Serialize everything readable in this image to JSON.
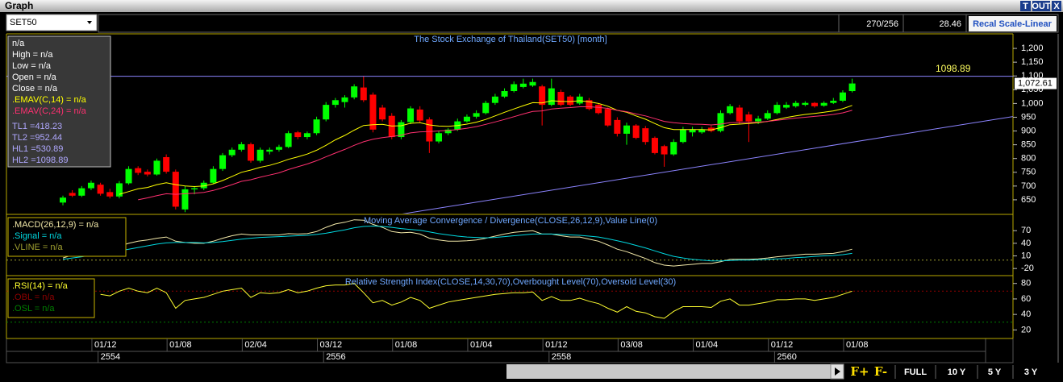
{
  "window": {
    "title": "Graph",
    "buttons": [
      "T",
      "OUT",
      "X"
    ]
  },
  "toolbar": {
    "symbol": "SET50",
    "counter": "270/256",
    "value": "28.46",
    "scale_button": "Recal Scale-Linear"
  },
  "footer": {
    "zoom_buttons": [
      "F+",
      "F-"
    ],
    "range_buttons": [
      "FULL",
      "10 Y",
      "5 Y",
      "3 Y"
    ]
  },
  "chart_data": [
    {
      "type": "candlestick",
      "title": "The Stock Exchange of Thailand(SET50) [month]",
      "categories": [
        null,
        null,
        null,
        "01/12",
        null,
        null,
        null,
        null,
        null,
        null,
        null,
        "01/08",
        null,
        null,
        null,
        null,
        null,
        null,
        null,
        "02/04",
        null,
        null,
        null,
        null,
        null,
        null,
        null,
        "03/12",
        null,
        null,
        null,
        null,
        null,
        null,
        null,
        "01/08",
        null,
        null,
        null,
        null,
        null,
        null,
        null,
        "01/04",
        null,
        null,
        null,
        null,
        null,
        null,
        null,
        "01/12",
        null,
        null,
        null,
        null,
        null,
        null,
        null,
        "03/08",
        null,
        null,
        null,
        null,
        null,
        null,
        null,
        "01/04",
        null,
        null,
        null,
        null,
        null,
        null,
        null,
        "01/12",
        null,
        null,
        null,
        null,
        null,
        null,
        null,
        "01/08",
        null
      ],
      "categories_2": [
        null,
        null,
        null,
        null,
        "2554",
        null,
        null,
        null,
        null,
        null,
        null,
        null,
        null,
        null,
        null,
        null,
        null,
        null,
        null,
        null,
        null,
        null,
        null,
        null,
        null,
        null,
        null,
        null,
        "2556",
        null,
        null,
        null,
        null,
        null,
        null,
        null,
        null,
        null,
        null,
        null,
        null,
        null,
        null,
        null,
        null,
        null,
        null,
        null,
        null,
        null,
        null,
        null,
        "2558",
        null,
        null,
        null,
        null,
        null,
        null,
        null,
        null,
        null,
        null,
        null,
        null,
        null,
        null,
        null,
        null,
        null,
        null,
        null,
        null,
        null,
        null,
        null,
        "2560",
        null,
        null,
        null,
        null,
        null,
        null,
        null,
        null
      ],
      "open": [
        640,
        675,
        665,
        692,
        705,
        678,
        662,
        710,
        765,
        752,
        742,
        805,
        752,
        615,
        688,
        692,
        712,
        762,
        812,
        832,
        852,
        792,
        825,
        832,
        842,
        895,
        878,
        892,
        942,
        995,
        1005,
        1022,
        1058,
        1032,
        985,
        955,
        878,
        932,
        978,
        942,
        862,
        892,
        905,
        935,
        952,
        965,
        1002,
        1025,
        1045,
        1060,
        1065,
        1062,
        995,
        1042,
        1025,
        1000,
        1012,
        995,
        980,
        940,
        890,
        920,
        910,
        875,
        845,
        815,
        860,
        895,
        895,
        912,
        900,
        965,
        985,
        960,
        935,
        945,
        965,
        985,
        990,
        995,
        1002,
        992,
        1002,
        1010,
        1045
      ],
      "high": [
        665,
        685,
        700,
        720,
        712,
        690,
        718,
        772,
        772,
        760,
        800,
        815,
        760,
        700,
        700,
        720,
        772,
        820,
        840,
        860,
        858,
        840,
        840,
        850,
        900,
        900,
        898,
        952,
        1005,
        1020,
        1030,
        1070,
        1100,
        1040,
        995,
        965,
        940,
        990,
        990,
        950,
        900,
        910,
        945,
        960,
        975,
        1010,
        1035,
        1055,
        1080,
        1090,
        1090,
        1068,
        1090,
        1050,
        1030,
        1035,
        1020,
        1000,
        985,
        950,
        930,
        925,
        918,
        880,
        850,
        870,
        915,
        915,
        915,
        920,
        975,
        998,
        995,
        970,
        955,
        975,
        1005,
        1005,
        1010,
        1008,
        1005,
        1008,
        1020,
        1048,
        1090
      ],
      "low": [
        630,
        660,
        660,
        685,
        665,
        655,
        655,
        705,
        740,
        735,
        738,
        745,
        615,
        605,
        670,
        685,
        708,
        755,
        805,
        825,
        785,
        785,
        815,
        825,
        838,
        870,
        870,
        885,
        935,
        985,
        985,
        1015,
        1005,
        895,
        935,
        870,
        870,
        925,
        930,
        820,
        855,
        885,
        900,
        930,
        945,
        960,
        995,
        1020,
        1040,
        1055,
        1060,
        920,
        990,
        990,
        990,
        995,
        975,
        960,
        915,
        880,
        850,
        870,
        850,
        815,
        770,
        810,
        855,
        880,
        890,
        895,
        895,
        960,
        925,
        860,
        925,
        940,
        960,
        980,
        985,
        990,
        985,
        988,
        998,
        1005,
        1040
      ],
      "close": [
        658,
        665,
        692,
        712,
        672,
        662,
        710,
        762,
        748,
        742,
        792,
        752,
        625,
        688,
        692,
        712,
        762,
        812,
        832,
        852,
        792,
        832,
        832,
        842,
        892,
        878,
        892,
        942,
        995,
        1012,
        1022,
        1062,
        1012,
        905,
        942,
        878,
        932,
        982,
        938,
        862,
        892,
        905,
        935,
        952,
        965,
        1002,
        1025,
        1045,
        1070,
        1072,
        1078,
        995,
        1055,
        995,
        995,
        1025,
        980,
        965,
        920,
        890,
        920,
        875,
        860,
        820,
        815,
        860,
        905,
        905,
        905,
        900,
        965,
        990,
        935,
        935,
        945,
        965,
        995,
        995,
        1002,
        1002,
        990,
        1002,
        1010,
        1040,
        1072.61
      ],
      "up_color": "#00ff00",
      "down_color": "#ff0000",
      "series": [
        {
          "name": ".EMAV(C,14)   = n/a",
          "color": "#ffff00",
          "values": [
            null,
            null,
            null,
            null,
            null,
            null,
            670,
            680,
            690,
            695,
            705,
            712,
            705,
            700,
            698,
            700,
            708,
            720,
            735,
            750,
            758,
            768,
            775,
            785,
            797,
            806,
            816,
            830,
            848,
            868,
            884,
            903,
            920,
            923,
            924,
            918,
            919,
            928,
            930,
            922,
            918,
            917,
            920,
            925,
            932,
            942,
            955,
            968,
            980,
            992,
            1003,
            1002,
            1010,
            1008,
            1007,
            1010,
            1006,
            1000,
            990,
            975,
            968,
            955,
            943,
            927,
            912,
            905,
            905,
            905,
            905,
            904,
            912,
            923,
            925,
            927,
            930,
            935,
            942,
            949,
            955,
            960,
            964,
            968,
            973,
            981,
            993
          ]
        },
        {
          "name": ".EMAV(C,24)   = n/a",
          "color": "#ff3070",
          "values": [
            null,
            null,
            null,
            null,
            null,
            null,
            null,
            null,
            650,
            657,
            665,
            672,
            670,
            672,
            674,
            677,
            684,
            694,
            705,
            717,
            723,
            732,
            740,
            748,
            760,
            770,
            780,
            792,
            806,
            820,
            833,
            848,
            861,
            870,
            876,
            880,
            885,
            893,
            897,
            898,
            900,
            902,
            905,
            910,
            916,
            924,
            933,
            942,
            952,
            962,
            971,
            973,
            980,
            983,
            985,
            988,
            988,
            986,
            982,
            975,
            970,
            962,
            955,
            945,
            935,
            930,
            927,
            925,
            924,
            922,
            925,
            930,
            931,
            931,
            932,
            935,
            939,
            943,
            947,
            950,
            953,
            956,
            960,
            966,
            975
          ]
        }
      ],
      "info_lines": [
        "n/a",
        "High  = n/a",
        "Low  = n/a",
        "Open  = n/a",
        "Close  = n/a"
      ],
      "levels": [
        {
          "label": "TL1 =",
          "value": 418.23
        },
        {
          "label": "TL2 =",
          "value": 952.44
        },
        {
          "label": "HL1 =",
          "value": 530.89
        },
        {
          "label": "HL2 =",
          "value": 1098.89
        }
      ],
      "level_color": "#8c84ff",
      "last_price": {
        "value": 1072.61,
        "label": "1,072.61"
      },
      "ylim": [
        600,
        1250
      ],
      "yticks": [
        650,
        700,
        750,
        800,
        850,
        900,
        950,
        {
          "value": 1000,
          "label": "1,000"
        },
        {
          "value": 1050,
          "label": "1,050"
        },
        {
          "value": 1100,
          "label": "1,100"
        },
        {
          "value": 1150,
          "label": "1,150"
        },
        {
          "value": 1200,
          "label": "1,200"
        }
      ]
    },
    {
      "type": "line",
      "title": "Moving Average Convergence / Divergence(CLOSE,26,12,9),Value Line(0)",
      "series": [
        {
          "name": ".MACD(26,12,9)   = n/a",
          "color": "#f2e8a8",
          "values": [
            5,
            12,
            18,
            25,
            28,
            30,
            33,
            40,
            45,
            48,
            52,
            55,
            45,
            42,
            40,
            40,
            45,
            52,
            58,
            62,
            60,
            60,
            60,
            60,
            63,
            62,
            63,
            68,
            78,
            86,
            90,
            96,
            95,
            85,
            78,
            68,
            65,
            66,
            62,
            52,
            48,
            45,
            45,
            46,
            48,
            52,
            57,
            62,
            66,
            68,
            70,
            62,
            62,
            58,
            55,
            55,
            50,
            45,
            36,
            26,
            20,
            12,
            4,
            -6,
            -12,
            -14,
            -12,
            -10,
            -8,
            -8,
            -4,
            2,
            2,
            2,
            3,
            5,
            8,
            10,
            12,
            14,
            14,
            15,
            16,
            20,
            26
          ]
        },
        {
          "name": ".Signal  = n/a",
          "color": "#00d8e0",
          "values": [
            2,
            5,
            8,
            12,
            16,
            19,
            22,
            26,
            30,
            34,
            38,
            41,
            42,
            42,
            42,
            41,
            42,
            44,
            47,
            50,
            52,
            54,
            55,
            56,
            57,
            58,
            59,
            61,
            64,
            68,
            72,
            77,
            80,
            81,
            80,
            78,
            75,
            73,
            71,
            67,
            63,
            60,
            57,
            55,
            54,
            53,
            54,
            56,
            58,
            60,
            62,
            62,
            62,
            61,
            60,
            59,
            57,
            55,
            51,
            46,
            41,
            35,
            29,
            22,
            15,
            9,
            5,
            2,
            0,
            -2,
            -2,
            -1,
            0,
            0,
            1,
            2,
            3,
            4,
            6,
            7,
            9,
            10,
            11,
            13,
            16
          ]
        }
      ],
      "reference_lines": [
        {
          "name": ".VLINE  = n/a",
          "color": "#a0a030",
          "value": 0
        }
      ],
      "ylim": [
        -35,
        105
      ],
      "yticks": [
        -20,
        10,
        40,
        70
      ]
    },
    {
      "type": "line",
      "title": "Relative Strength Index(CLOSE,14,30,70),Overbought Level(70),Oversold Level(30)",
      "series": [
        {
          "name": ".RSI(14)   = n/a",
          "color": "#ffff30",
          "values": [
            null,
            null,
            null,
            null,
            66,
            64,
            70,
            74,
            70,
            68,
            74,
            68,
            48,
            58,
            60,
            62,
            66,
            70,
            72,
            74,
            62,
            68,
            67,
            68,
            72,
            68,
            70,
            74,
            77,
            78,
            78,
            80,
            68,
            55,
            58,
            52,
            56,
            62,
            58,
            48,
            52,
            56,
            58,
            60,
            62,
            64,
            66,
            67,
            68,
            68,
            69,
            58,
            63,
            58,
            58,
            61,
            57,
            54,
            48,
            43,
            50,
            44,
            42,
            37,
            35,
            44,
            50,
            50,
            50,
            49,
            57,
            60,
            52,
            52,
            54,
            56,
            59,
            59,
            60,
            60,
            58,
            60,
            62,
            66,
            70
          ]
        }
      ],
      "reference_lines": [
        {
          "name": ".OBL  = n/a",
          "color": "#900000",
          "value": 70
        },
        {
          "name": ".OSL  = n/a",
          "color": "#008000",
          "value": 30
        }
      ],
      "ylim": [
        10,
        88
      ],
      "yticks": [
        20,
        40,
        60,
        80
      ]
    }
  ]
}
